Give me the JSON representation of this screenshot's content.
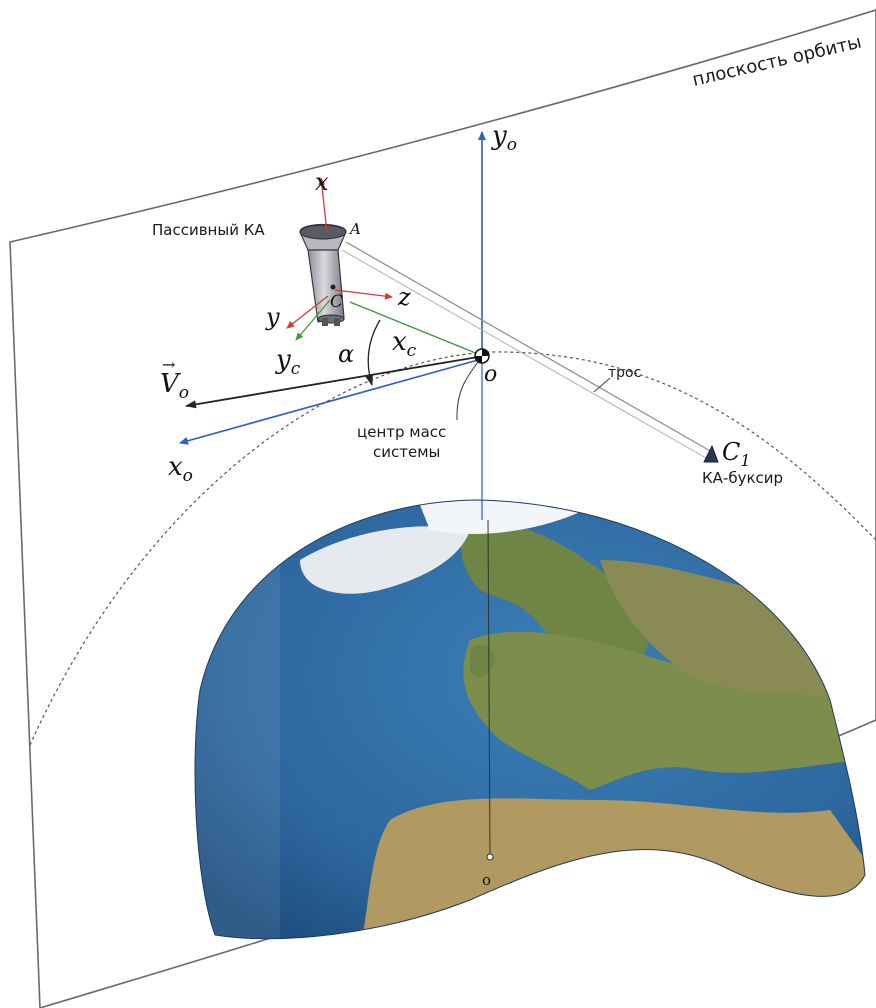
{
  "labels": {
    "orbit_plane": "плоскость орбиты",
    "passive_sc": "Пассивный КА",
    "tether": "трос",
    "center_mass_line1": "центр масс",
    "center_mass_line2": "системы",
    "tug": "КА-буксир"
  },
  "symbols": {
    "yo": "y",
    "yo_sub": "o",
    "x": "x",
    "A": "A",
    "z": "z",
    "y": "y",
    "C": "C",
    "yc": "y",
    "yc_sub": "c",
    "xc": "x",
    "xc_sub": "c",
    "alpha": "α",
    "Vo": "V",
    "Vo_sub": "o",
    "Vo_arrow": "→",
    "O": "o",
    "xo": "x",
    "xo_sub": "o",
    "C1": "C",
    "C1_sub": "1",
    "earth_center": "o"
  },
  "colors": {
    "axis_blue": "#2d5fc4",
    "axis_red": "#d23a3a",
    "axis_green": "#3b9a3b",
    "plane_edge": "#6a6a6a",
    "ocean": "#2f6aa3",
    "land": "#7f8f4e",
    "ice": "#eef3f8"
  }
}
